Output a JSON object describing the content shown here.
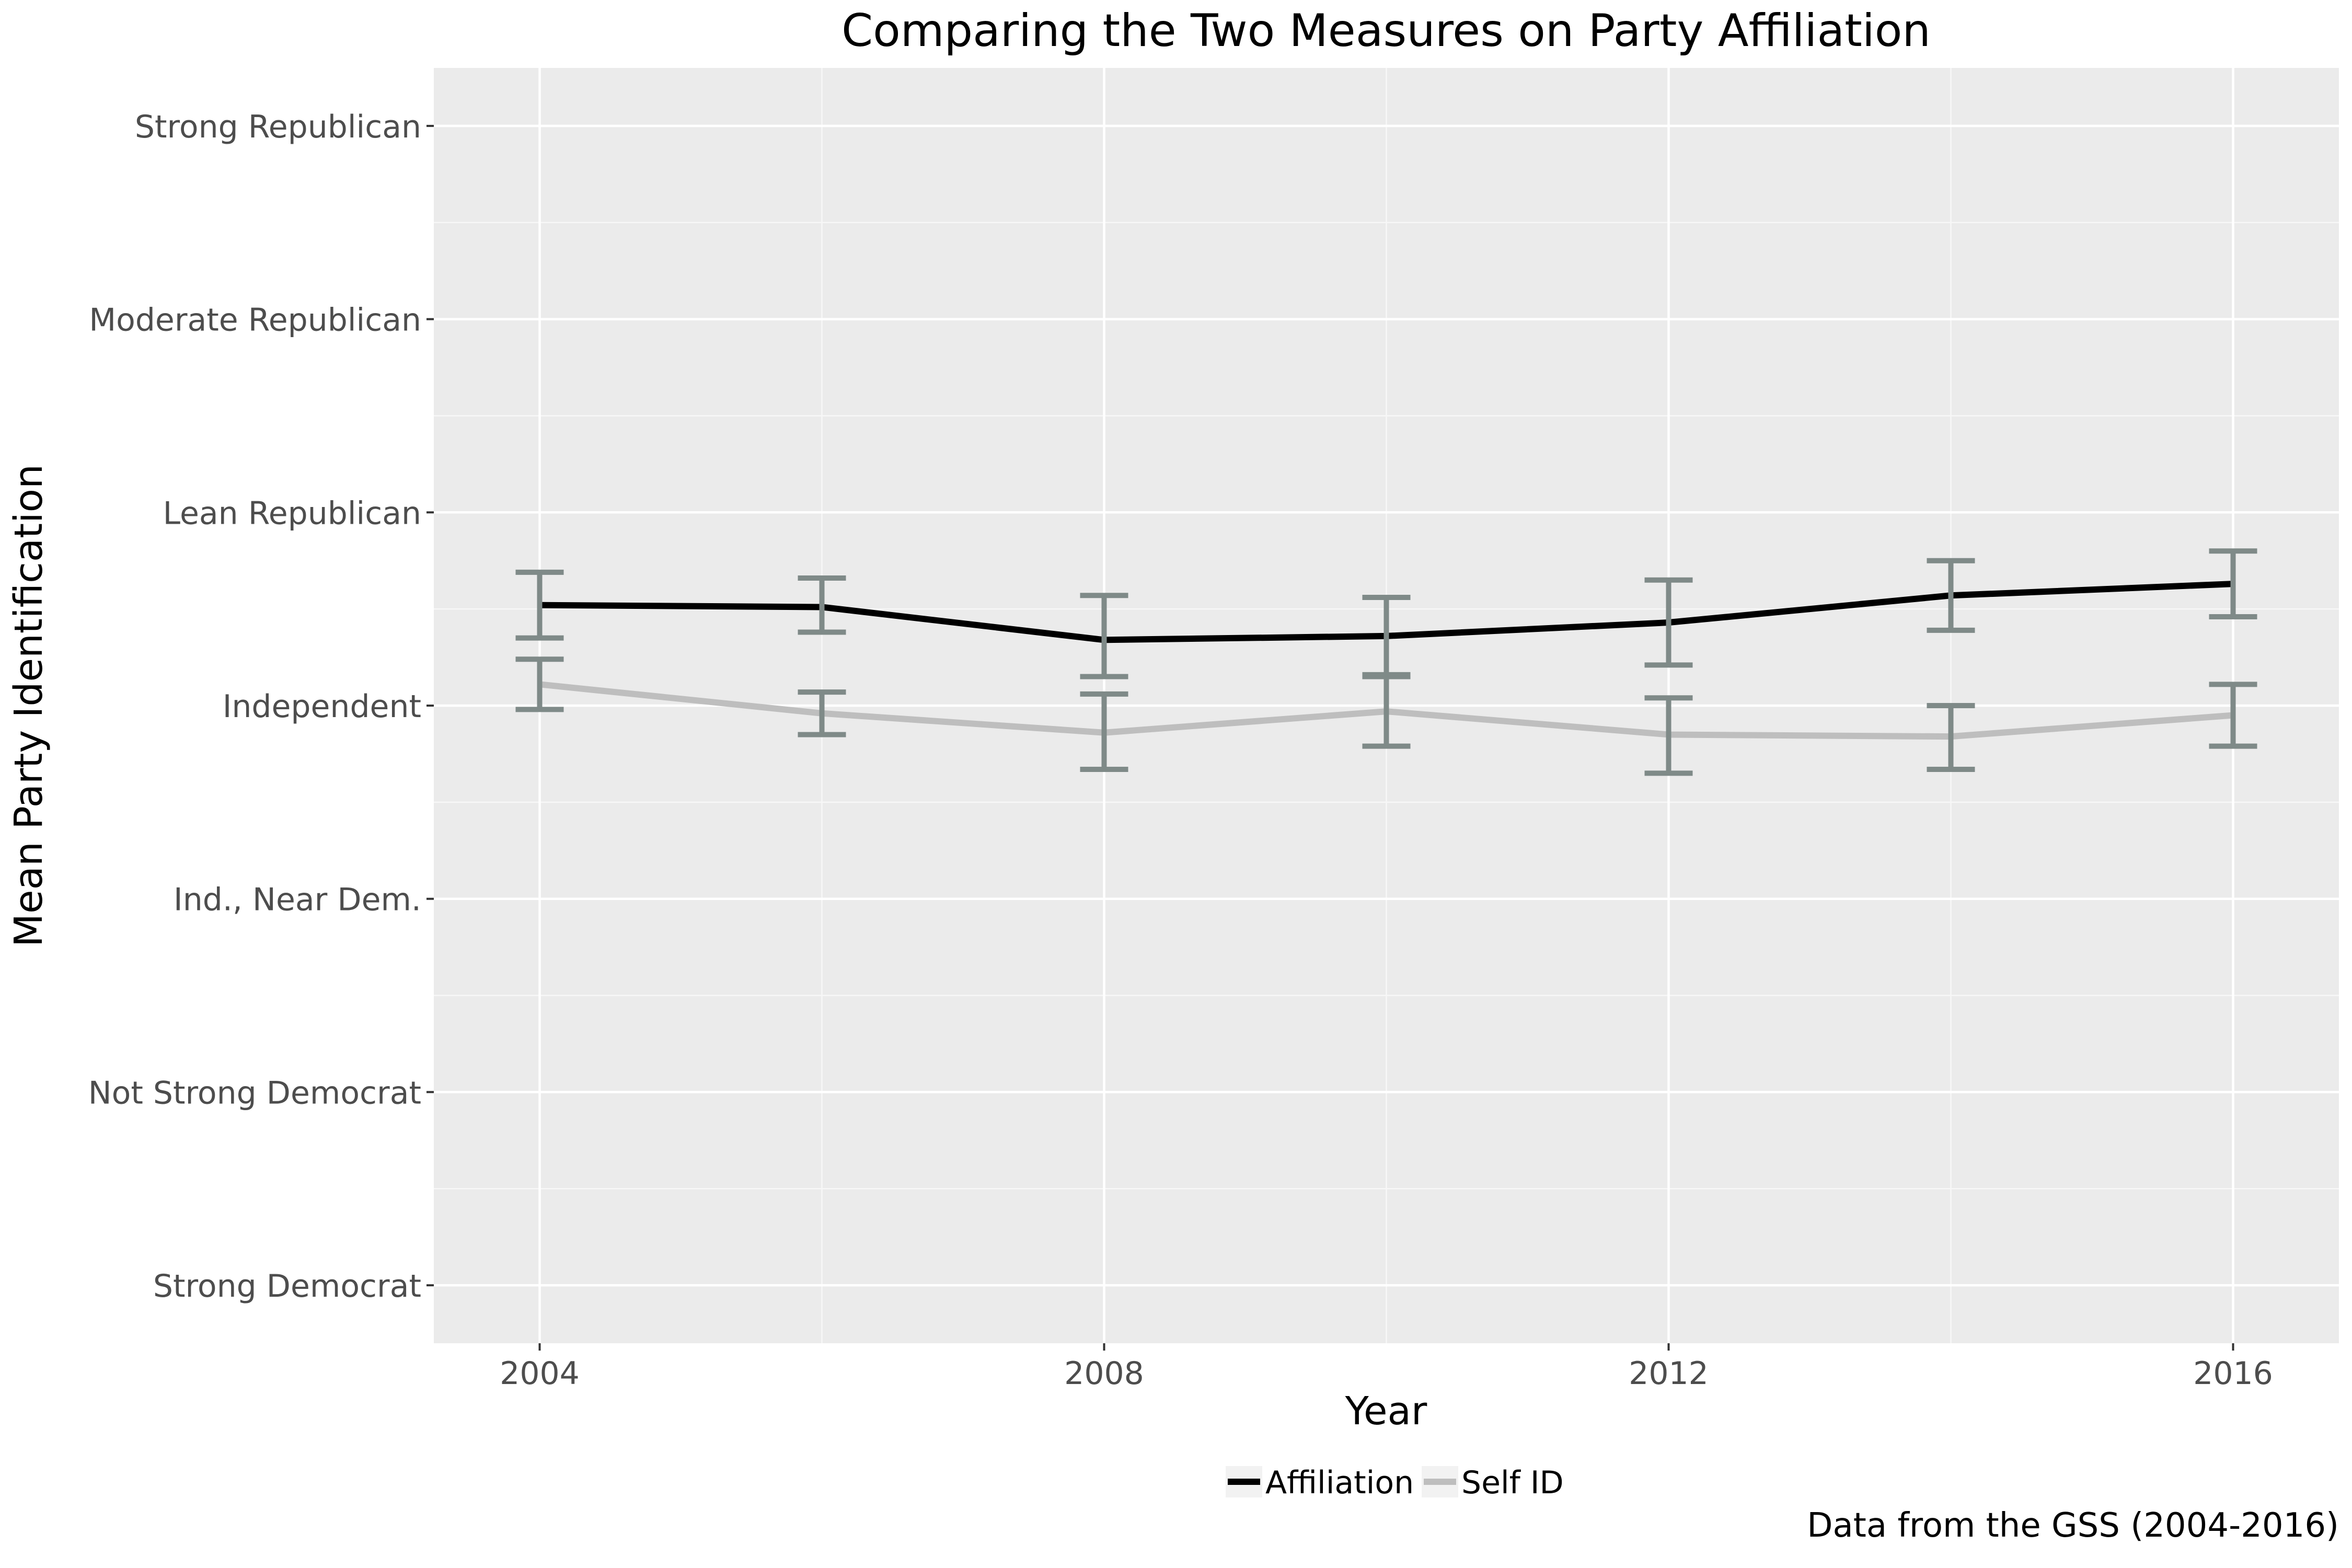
{
  "chart_data": {
    "type": "line",
    "title": "Comparing the Two Measures on Party Affiliation",
    "xlabel": "Year",
    "ylabel": "Mean Party Identification",
    "caption": "Data from the GSS (2004-2016)",
    "x": [
      2004,
      2006,
      2008,
      2010,
      2012,
      2014,
      2016
    ],
    "x_ticks": [
      "2004",
      "2008",
      "2012",
      "2016"
    ],
    "y_ticks": [
      "Strong Democrat",
      "Not Strong Democrat",
      "Ind., Near Dem.",
      "Independent",
      "Lean Republican",
      "Moderate Republican",
      "Strong Republican"
    ],
    "xlim": [
      2003.25,
      2016.75
    ],
    "ylim": [
      -0.3,
      6.3
    ],
    "grid": true,
    "legend_position": "bottom",
    "series": [
      {
        "name": "Affiliation",
        "color": "#000000",
        "values": [
          3.52,
          3.51,
          3.34,
          3.36,
          3.43,
          3.57,
          3.63
        ],
        "error_low": [
          3.35,
          3.38,
          3.15,
          3.16,
          3.21,
          3.39,
          3.46
        ],
        "error_high": [
          3.69,
          3.66,
          3.57,
          3.56,
          3.65,
          3.75,
          3.8
        ]
      },
      {
        "name": "Self ID",
        "color": "#bebebe",
        "values": [
          3.11,
          2.96,
          2.86,
          2.97,
          2.85,
          2.84,
          2.95
        ],
        "error_low": [
          2.98,
          2.85,
          2.67,
          2.79,
          2.65,
          2.67,
          2.79
        ],
        "error_high": [
          3.24,
          3.07,
          3.06,
          3.15,
          3.04,
          3.0,
          3.11
        ]
      }
    ],
    "error_bar_color": "#7f8a88"
  }
}
